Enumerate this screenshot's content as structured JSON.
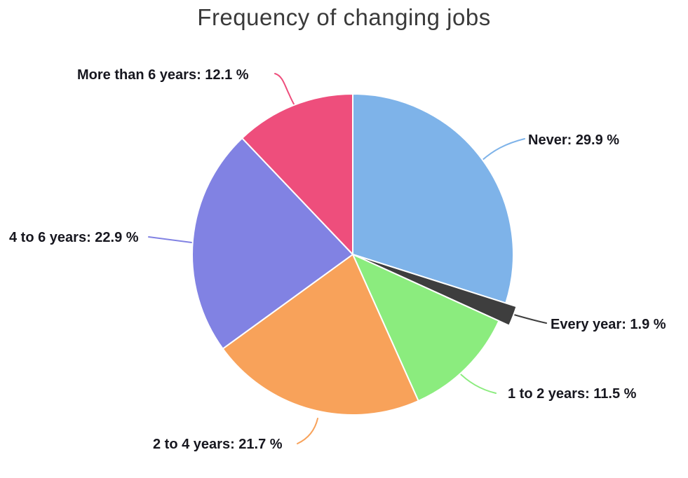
{
  "title": "Frequency of changing jobs",
  "chart_data": {
    "type": "pie",
    "title": "Frequency of changing jobs",
    "unit": "%",
    "start_angle_deg": 0,
    "direction": "clockwise",
    "legend_position": "none",
    "labels_style": "outside-callouts",
    "slices": [
      {
        "label": "Never",
        "value": 29.9,
        "display": "Never: 29.9 %",
        "color": "#7EB3E9",
        "emphasized": false
      },
      {
        "label": "Every year",
        "value": 1.9,
        "display": "Every year: 1.9 %",
        "color": "#3E3E3E",
        "emphasized": true
      },
      {
        "label": "1 to 2 years",
        "value": 11.5,
        "display": "1 to 2 years: 11.5 %",
        "color": "#8BEC7E",
        "emphasized": false
      },
      {
        "label": "2 to 4 years",
        "value": 21.7,
        "display": "2 to 4 years: 21.7 %",
        "color": "#F8A25A",
        "emphasized": false
      },
      {
        "label": "4 to 6 years",
        "value": 22.9,
        "display": "4 to 6 years: 22.9 %",
        "color": "#8182E3",
        "emphasized": false
      },
      {
        "label": "More than 6 years",
        "value": 12.1,
        "display": "More than 6 years: 12.1 %",
        "color": "#EE4E7C",
        "emphasized": false
      }
    ],
    "title_color": "#3a3a3a",
    "label_text_color": "#17171f",
    "slice_border_color": "#ffffff"
  }
}
